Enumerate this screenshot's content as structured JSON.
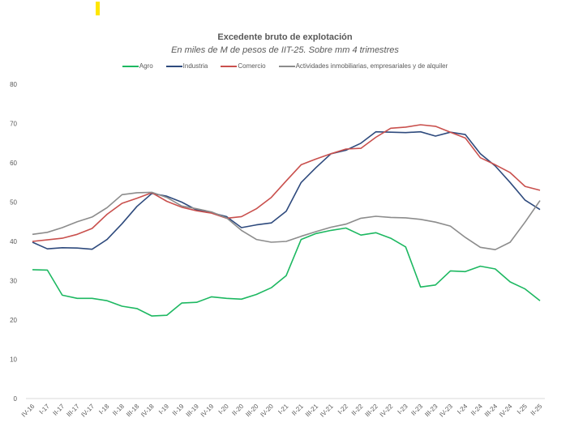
{
  "chart_data": {
    "type": "line",
    "title": "Excedente bruto de explotación",
    "subtitle": "En miles de M de pesos de IIT-25. Sobre mm 4 trimestres",
    "xlabel": "",
    "ylabel": "",
    "ylim": [
      0,
      80
    ],
    "yticks": [
      0,
      10,
      20,
      30,
      40,
      50,
      60,
      70,
      80
    ],
    "grid": false,
    "legend_position": "top",
    "categories": [
      "IV-16",
      "I-17",
      "II-17",
      "III-17",
      "IV-17",
      "I-18",
      "II-18",
      "III-18",
      "IV-18",
      "I-19",
      "II-19",
      "III-19",
      "IV-19",
      "I-20",
      "II-20",
      "III-20",
      "IV-20",
      "I-21",
      "II-21",
      "III-21",
      "IV-21",
      "I-22",
      "II-22",
      "III-22",
      "IV-22",
      "I-23",
      "II-23",
      "III-23",
      "IV-23",
      "I-24",
      "II-24",
      "III-24",
      "IV-24",
      "I-25",
      "II-25"
    ],
    "series": [
      {
        "name": "Agro",
        "color": "#1db861",
        "values": [
          32.8,
          32.7,
          26.3,
          25.5,
          25.5,
          24.9,
          23.5,
          22.9,
          21.0,
          21.2,
          24.3,
          24.5,
          25.9,
          25.5,
          25.3,
          26.5,
          28.2,
          31.3,
          40.5,
          42.0,
          42.8,
          43.4,
          41.6,
          42.2,
          40.8,
          38.6,
          28.4,
          28.9,
          32.5,
          32.3,
          33.7,
          33.0,
          29.7,
          27.9,
          24.9
        ]
      },
      {
        "name": "Industria",
        "color": "#2e4a7d",
        "values": [
          39.8,
          38.1,
          38.4,
          38.3,
          38.0,
          40.5,
          44.5,
          48.9,
          52.2,
          51.5,
          50.0,
          48.0,
          47.3,
          46.3,
          43.5,
          44.2,
          44.7,
          47.7,
          55.0,
          58.8,
          62.3,
          63.2,
          65.0,
          67.9,
          67.8,
          67.7,
          67.9,
          66.8,
          67.8,
          67.2,
          62.3,
          59.2,
          55.0,
          50.5,
          48.1
        ]
      },
      {
        "name": "Comercio",
        "color": "#c9504d",
        "values": [
          40.0,
          40.4,
          40.8,
          41.8,
          43.3,
          46.9,
          49.7,
          51.0,
          52.4,
          50.2,
          48.7,
          47.8,
          47.2,
          45.9,
          46.3,
          48.3,
          51.2,
          55.4,
          59.5,
          61.0,
          62.3,
          63.5,
          63.7,
          66.5,
          68.8,
          69.1,
          69.7,
          69.3,
          67.8,
          66.3,
          61.3,
          59.5,
          57.5,
          54.0,
          53.0
        ]
      },
      {
        "name": "Actividades inmobiliarias, empresariales y de alquiler",
        "color": "#8c8c8c",
        "values": [
          41.8,
          42.3,
          43.5,
          45.0,
          46.2,
          48.6,
          51.9,
          52.4,
          52.5,
          51.2,
          49.0,
          48.3,
          47.5,
          46.0,
          42.8,
          40.5,
          39.8,
          40.0,
          41.3,
          42.5,
          43.6,
          44.4,
          45.9,
          46.4,
          46.1,
          46.0,
          45.6,
          44.9,
          43.9,
          41.0,
          38.5,
          37.9,
          39.8,
          44.9,
          50.4
        ]
      }
    ]
  }
}
